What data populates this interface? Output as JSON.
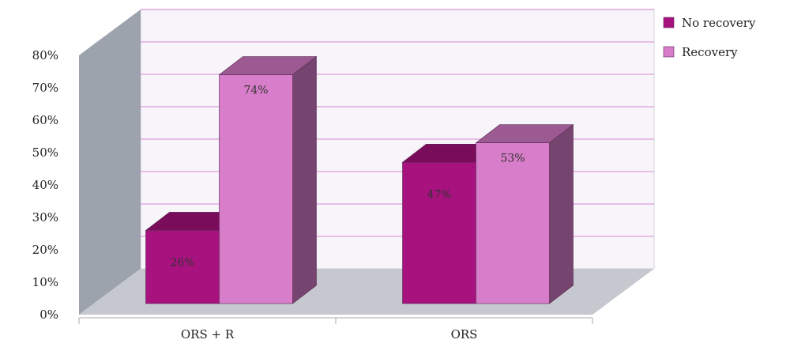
{
  "chart_data": {
    "type": "bar",
    "categories": [
      "ORS + R",
      "ORS"
    ],
    "series": [
      {
        "name": "No recovery",
        "values": [
          26,
          47
        ],
        "labels": [
          "26%",
          "47%"
        ],
        "color": "#A8127F"
      },
      {
        "name": "Recovery",
        "values": [
          74,
          53
        ],
        "labels": [
          "74%",
          "53%"
        ],
        "color": "#D77DC9"
      }
    ],
    "yticks": [
      "0%",
      "10%",
      "20%",
      "30%",
      "40%",
      "50%",
      "60%",
      "70%",
      "80%"
    ],
    "ylim": [
      0,
      80
    ],
    "title": "",
    "xlabel": "",
    "ylabel": "",
    "grid": true,
    "legend_position": "top-right",
    "three_d": true,
    "colors": {
      "back_wall": "#F7F5FA",
      "side_wall": "#9CA3AD",
      "floor": "#C6C8CF",
      "gridline": "#C030B0"
    }
  }
}
